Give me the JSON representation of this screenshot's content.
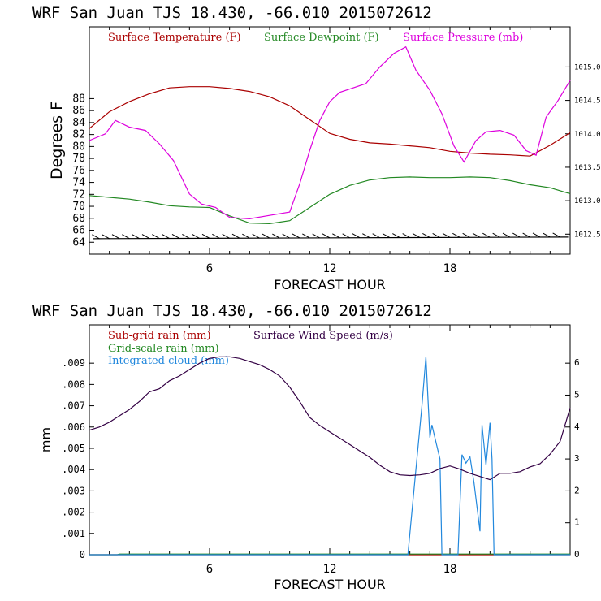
{
  "chart_data": [
    {
      "type": "line",
      "title": "WRF   San Juan TJS  18.430, -66.010  2015072612",
      "xlabel": "FORECAST HOUR",
      "ylabel": "Degrees F",
      "xlim": [
        0,
        24
      ],
      "ylim": [
        62,
        100
      ],
      "x_ticks": [
        6,
        12,
        18
      ],
      "y_ticks": [
        64,
        66,
        68,
        70,
        72,
        74,
        76,
        78,
        80,
        82,
        84,
        86,
        88
      ],
      "y2lim": [
        1012.2,
        1015.6
      ],
      "y2_ticks": [
        "1012.5",
        "1013.0",
        "1013.5",
        "1014.0",
        "1014.5",
        "1015.0"
      ],
      "grid": false,
      "legend_position": "top",
      "series": [
        {
          "name": "Surface Temperature (F)",
          "color": "#aa0000",
          "axis": "left",
          "x": [
            0,
            1,
            2,
            3,
            4,
            5,
            6,
            7,
            8,
            9,
            10,
            11,
            12,
            13,
            14,
            15,
            16,
            17,
            18,
            19,
            20,
            21,
            22,
            23,
            24
          ],
          "y": [
            83,
            85.8,
            87.5,
            88.8,
            89.8,
            90,
            90,
            89.7,
            89.2,
            88.3,
            86.8,
            84.5,
            82.2,
            81.2,
            80.6,
            80.4,
            80.1,
            79.8,
            79.2,
            78.9,
            78.7,
            78.6,
            78.4,
            80.2,
            82.3
          ]
        },
        {
          "name": "Surface Dewpoint (F)",
          "color": "#228822",
          "axis": "left",
          "x": [
            0,
            1,
            2,
            3,
            4,
            5,
            6,
            7,
            8,
            9,
            10,
            11,
            12,
            13,
            14,
            15,
            16,
            17,
            18,
            19,
            20,
            21,
            22,
            23,
            24
          ],
          "y": [
            71.8,
            71.5,
            71.2,
            70.7,
            70.1,
            69.9,
            69.8,
            68.4,
            67.2,
            67.1,
            67.6,
            69.8,
            72,
            73.5,
            74.4,
            74.8,
            74.9,
            74.8,
            74.8,
            74.9,
            74.8,
            74.3,
            73.6,
            73.1,
            72.1
          ]
        },
        {
          "name": "Surface Pressure (mb)",
          "color": "#dd00dd",
          "axis": "right",
          "x": [
            0,
            0.8,
            1.3,
            2,
            2.8,
            3.5,
            4.2,
            5,
            5.6,
            6.3,
            7,
            8,
            9,
            10,
            10.5,
            11,
            11.5,
            12,
            12.5,
            13,
            13.8,
            14.5,
            15.2,
            15.8,
            16.3,
            17,
            17.6,
            18.2,
            18.7,
            19.3,
            19.8,
            20.5,
            21.2,
            21.8,
            22.3,
            22.8,
            23.4,
            24
          ],
          "y": [
            1013.9,
            1014.0,
            1014.2,
            1014.1,
            1014.05,
            1013.85,
            1013.6,
            1013.1,
            1012.95,
            1012.9,
            1012.75,
            1012.73,
            1012.78,
            1012.83,
            1013.25,
            1013.75,
            1014.2,
            1014.48,
            1014.62,
            1014.67,
            1014.75,
            1015.0,
            1015.2,
            1015.3,
            1014.95,
            1014.65,
            1014.3,
            1013.82,
            1013.58,
            1013.9,
            1014.03,
            1014.05,
            1013.98,
            1013.75,
            1013.68,
            1014.25,
            1014.5,
            1014.8
          ]
        }
      ]
    },
    {
      "type": "line",
      "title": "WRF   San Juan TJS  18.430, -66.010  2015072612",
      "xlabel": "FORECAST HOUR",
      "ylabel": "mm",
      "xlim": [
        0,
        24
      ],
      "ylim": [
        0,
        0.0108
      ],
      "x_ticks": [
        6,
        12,
        18
      ],
      "y_ticks": [
        ".009",
        ".008",
        ".007",
        ".006",
        ".005",
        ".004",
        ".003",
        ".002",
        ".001",
        "0"
      ],
      "y2lim": [
        0,
        7.2
      ],
      "y2_ticks": [
        "0",
        "1",
        "2",
        "3",
        "4",
        "5",
        "6"
      ],
      "grid": false,
      "legend_position": "top-left",
      "series": [
        {
          "name": "Sub-grid rain (mm)",
          "color": "#aa0000",
          "axis": "left",
          "x": [
            0,
            24
          ],
          "y": [
            0,
            0
          ]
        },
        {
          "name": "Grid-scale rain (mm)",
          "color": "#228822",
          "axis": "left",
          "x": [
            0,
            1.4,
            1.5,
            24
          ],
          "y": [
            0,
            0,
            3e-05,
            3e-05
          ]
        },
        {
          "name": "Integrated cloud (mm)",
          "color": "#2288dd",
          "axis": "left",
          "x": [
            0,
            15.9,
            16.2,
            16.6,
            16.8,
            17.0,
            17.1,
            17.3,
            17.5,
            17.6,
            18.4,
            18.6,
            18.8,
            19.0,
            19.2,
            19.5,
            19.6,
            19.8,
            20.0,
            20.1,
            20.2,
            24
          ],
          "y": [
            0,
            0,
            0.003,
            0.007,
            0.0093,
            0.0055,
            0.0061,
            0.0053,
            0.0045,
            0,
            0,
            0.0047,
            0.0043,
            0.0046,
            0.0034,
            0.0011,
            0.0061,
            0.0042,
            0.0062,
            0.0045,
            0,
            0
          ]
        },
        {
          "name": "Surface Wind Speed (m/s)",
          "color": "#330044",
          "axis": "right",
          "x": [
            0,
            0.5,
            1,
            1.5,
            2,
            2.5,
            3,
            3.5,
            4,
            4.5,
            5,
            5.5,
            6,
            6.5,
            7,
            7.5,
            8,
            8.5,
            9,
            9.5,
            10,
            10.5,
            11,
            11.5,
            12,
            12.5,
            13,
            13.5,
            14,
            14.5,
            15,
            15.5,
            16,
            16.5,
            17,
            17.5,
            18,
            18.5,
            19,
            19.5,
            20,
            20.5,
            21,
            21.5,
            22,
            22.5,
            23,
            23.5,
            24
          ],
          "y": [
            3.9,
            4.0,
            4.15,
            4.35,
            4.55,
            4.8,
            5.1,
            5.2,
            5.45,
            5.6,
            5.8,
            6.0,
            6.15,
            6.2,
            6.2,
            6.15,
            6.05,
            5.95,
            5.8,
            5.6,
            5.25,
            4.8,
            4.3,
            4.05,
            3.85,
            3.65,
            3.45,
            3.25,
            3.05,
            2.8,
            2.6,
            2.5,
            2.48,
            2.5,
            2.55,
            2.7,
            2.78,
            2.68,
            2.55,
            2.45,
            2.35,
            2.55,
            2.55,
            2.6,
            2.75,
            2.85,
            3.15,
            3.55,
            4.6
          ]
        }
      ]
    }
  ]
}
